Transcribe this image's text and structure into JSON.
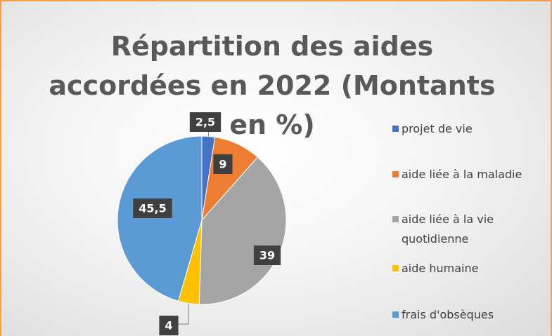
{
  "chart_data": {
    "type": "pie",
    "title": "Répartition des aides accordées en 2022 (Montants en %)",
    "categories": [
      "projet de vie",
      "aide liée à la maladie",
      "aide liée à la vie quotidienne",
      "aide humaine",
      "frais d'obsèques"
    ],
    "values": [
      2.5,
      9,
      39,
      4,
      45.5
    ],
    "value_labels": [
      "2,5",
      "9",
      "39",
      "4",
      "45,5"
    ],
    "colors": [
      "#4472c4",
      "#ed7d31",
      "#a5a5a5",
      "#ffc000",
      "#5b9bd5"
    ],
    "legend": "right"
  }
}
